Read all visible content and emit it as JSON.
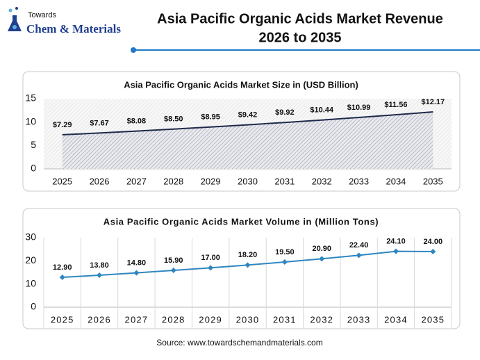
{
  "header": {
    "brand_top": "Towards",
    "brand": "Chem & Materials",
    "title_lines": [
      "Asia Pacific Organic Acids Market Revenue",
      "2026 to 2035"
    ]
  },
  "chart_data": [
    {
      "type": "area-line",
      "title": "Asia Pacific Organic Acids Market Size in (USD Billion)",
      "categories": [
        "2025",
        "2026",
        "2027",
        "2028",
        "2029",
        "2030",
        "2031",
        "2032",
        "2033",
        "2034",
        "2035"
      ],
      "values": [
        7.29,
        7.67,
        8.08,
        8.5,
        8.95,
        9.42,
        9.92,
        10.44,
        10.99,
        11.56,
        12.17
      ],
      "value_labels": [
        "$7.29",
        "$7.67",
        "$8.08",
        "$8.50",
        "$8.95",
        "$9.42",
        "$9.92",
        "$10.44",
        "$10.99",
        "$11.56",
        "$12.17"
      ],
      "color": "#1f2a4a",
      "ylim": [
        0,
        15
      ],
      "yticks": [
        0,
        5,
        10,
        15
      ],
      "grid": false,
      "category_dividers": false,
      "markers": false
    },
    {
      "type": "line",
      "title": "Asia Pacific Organic Acids Market Volume in (Million Tons)",
      "categories": [
        "2025",
        "2026",
        "2027",
        "2028",
        "2029",
        "2030",
        "2031",
        "2032",
        "2033",
        "2034",
        "2035"
      ],
      "values": [
        12.9,
        13.8,
        14.8,
        15.9,
        17,
        18.2,
        19.5,
        20.9,
        22.4,
        24.1,
        24
      ],
      "value_labels": [
        "12.90",
        "13.80",
        "14.80",
        "15.90",
        "17.00",
        "18.20",
        "19.50",
        "20.90",
        "22.40",
        "24.10",
        "24.00"
      ],
      "color": "#2e86c1",
      "ylim": [
        0,
        30
      ],
      "yticks": [
        0,
        10,
        20,
        30
      ],
      "grid": false,
      "category_dividers": true,
      "markers": true
    }
  ],
  "source": "Source: www.towardschemandmaterials.com"
}
